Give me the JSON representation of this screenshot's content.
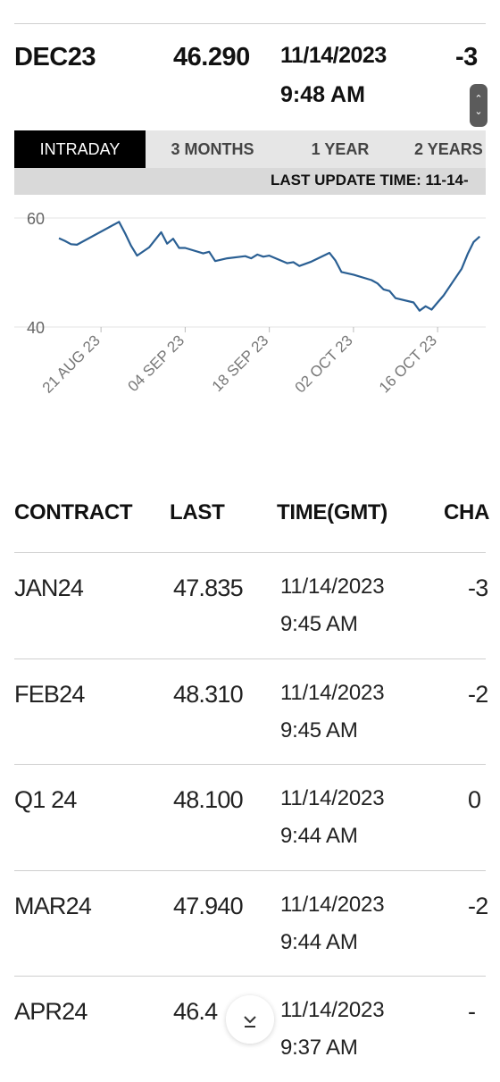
{
  "quote": {
    "contract": "DEC23",
    "last": "46.290",
    "date": "11/14/2023",
    "time": "9:48 AM",
    "change": "-3"
  },
  "tabs": [
    {
      "label": "INTRADAY",
      "active": true
    },
    {
      "label": "3 MONTHS",
      "active": false
    },
    {
      "label": "1 YEAR",
      "active": false
    },
    {
      "label": "2 YEARS",
      "active": false
    }
  ],
  "last_update_label": "LAST UPDATE TIME: 11-14-",
  "chart_data": {
    "type": "line",
    "line_color": "#2a5f93",
    "grid": true,
    "ylim": [
      40,
      60
    ],
    "y_ticks": [
      "60",
      "40"
    ],
    "x_tick_labels": [
      "21 AUG 23",
      "04 SEP 23",
      "18 SEP 23",
      "02 OCT 23",
      "16 OCT 23"
    ],
    "xlim": [
      "2023-08-17",
      "2023-10-27"
    ],
    "x": [
      "2023-08-17",
      "2023-08-18",
      "2023-08-19",
      "2023-08-20",
      "2023-08-27",
      "2023-08-28",
      "2023-08-29",
      "2023-08-30",
      "2023-09-01",
      "2023-09-03",
      "2023-09-04",
      "2023-09-05",
      "2023-09-06",
      "2023-09-07",
      "2023-09-10",
      "2023-09-11",
      "2023-09-12",
      "2023-09-14",
      "2023-09-17",
      "2023-09-18",
      "2023-09-19",
      "2023-09-20",
      "2023-09-21",
      "2023-09-24",
      "2023-09-25",
      "2023-09-26",
      "2023-09-28",
      "2023-10-01",
      "2023-10-02",
      "2023-10-03",
      "2023-10-05",
      "2023-10-08",
      "2023-10-09",
      "2023-10-10",
      "2023-10-11",
      "2023-10-12",
      "2023-10-15",
      "2023-10-16",
      "2023-10-17",
      "2023-10-18",
      "2023-10-19",
      "2023-10-20",
      "2023-10-23",
      "2023-10-24",
      "2023-10-25",
      "2023-10-26"
    ],
    "values": [
      56.3,
      55.8,
      55.2,
      55.1,
      59.3,
      57.2,
      54.9,
      53.1,
      54.6,
      57.4,
      55.3,
      56.2,
      54.5,
      54.5,
      53.5,
      53.8,
      52.1,
      52.6,
      53.0,
      52.6,
      53.3,
      52.9,
      53.1,
      51.7,
      51.9,
      51.2,
      52.0,
      53.6,
      52.2,
      50.1,
      49.6,
      48.6,
      48.0,
      46.9,
      46.6,
      45.3,
      44.5,
      43.0,
      43.8,
      43.2,
      44.5,
      45.8,
      50.7,
      53.4,
      55.6,
      56.6
    ]
  },
  "table": {
    "headers": [
      "CONTRACT",
      "LAST",
      "TIME(GMT)",
      "CHA"
    ],
    "rows": [
      {
        "contract": "JAN24",
        "last": "47.835",
        "date": "11/14/2023",
        "time": "9:45 AM",
        "change": "-3"
      },
      {
        "contract": "FEB24",
        "last": "48.310",
        "date": "11/14/2023",
        "time": "9:45 AM",
        "change": "-2"
      },
      {
        "contract": "Q1 24",
        "last": "48.100",
        "date": "11/14/2023",
        "time": "9:44 AM",
        "change": "0"
      },
      {
        "contract": "MAR24",
        "last": "47.940",
        "date": "11/14/2023",
        "time": "9:44 AM",
        "change": "-2"
      },
      {
        "contract": "APR24",
        "last": "46.4",
        "date": "11/14/2023",
        "time": "9:37 AM",
        "change": "-"
      }
    ]
  },
  "icons": {
    "scroll": "chevron-up-down-icon",
    "fab": "chevron-down-icon"
  }
}
